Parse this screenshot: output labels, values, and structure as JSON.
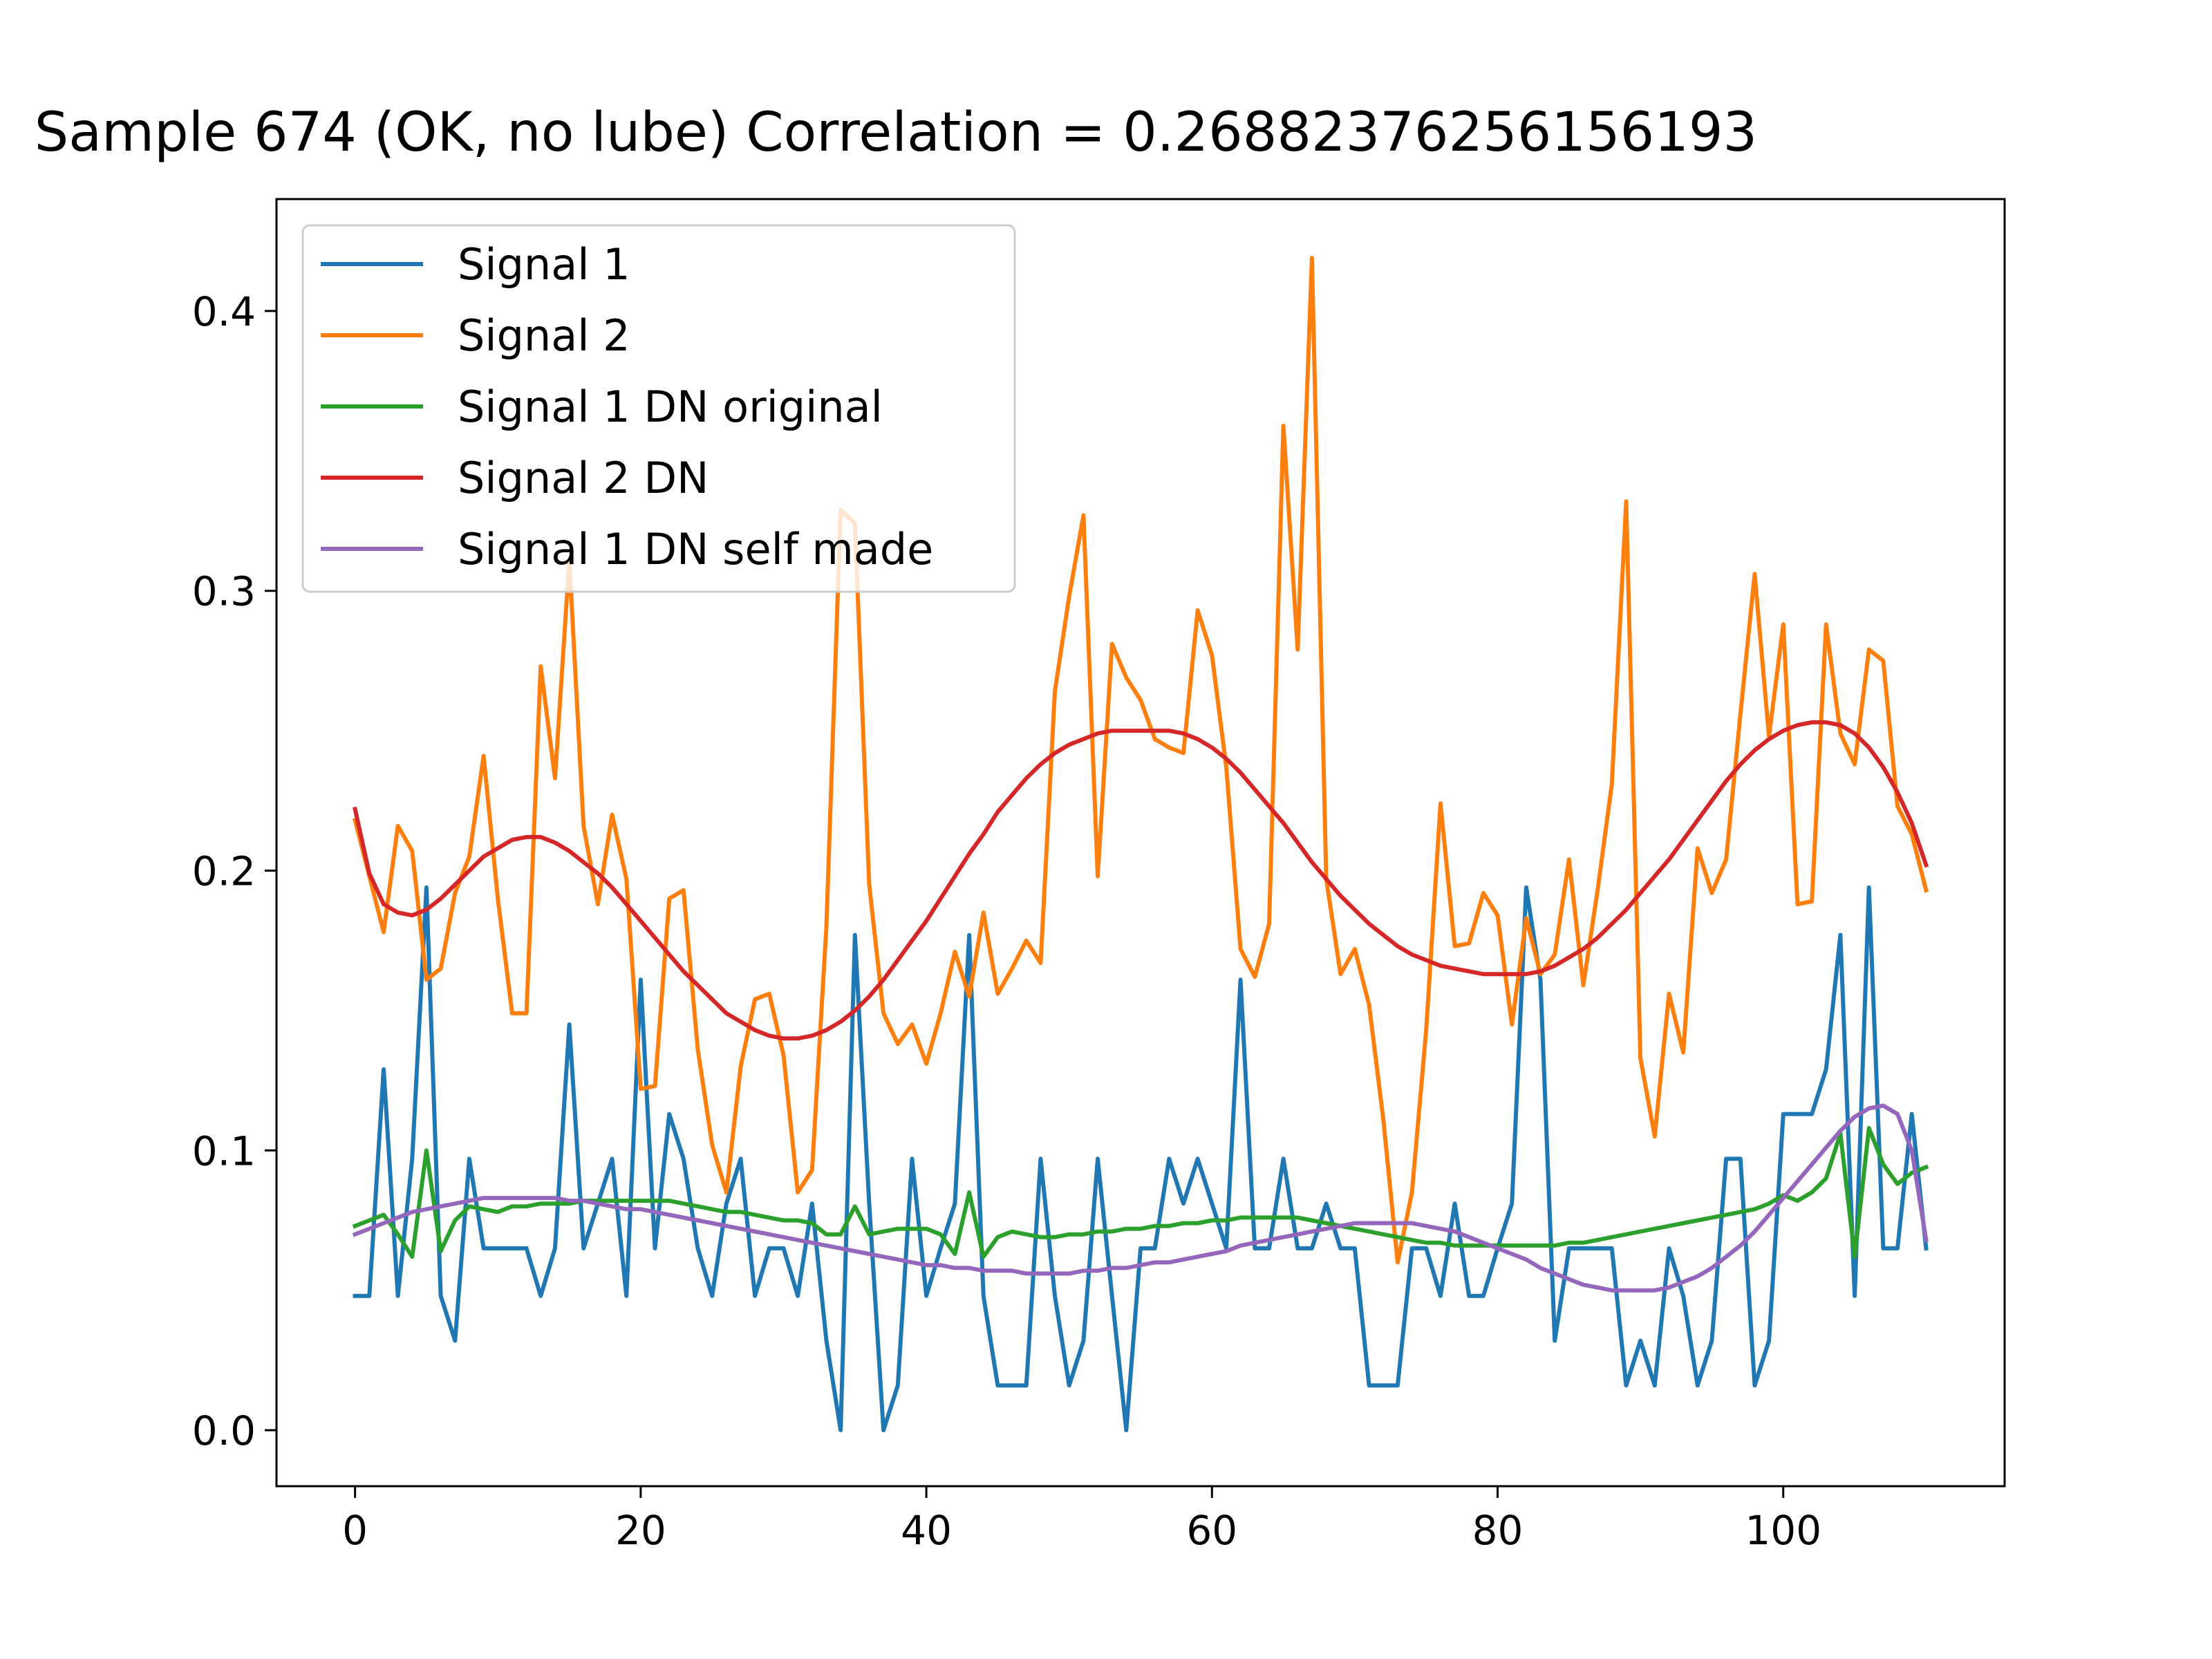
{
  "chart_data": {
    "type": "line",
    "title": "Sample 674 (OK, no lube)  Correlation = 0.26882376256156193",
    "xlabel": "",
    "ylabel": "",
    "xlim": [
      -5.5,
      115.5
    ],
    "ylim": [
      -0.02,
      0.44
    ],
    "xticks": [
      0,
      20,
      40,
      60,
      80,
      100
    ],
    "yticks": [
      0.0,
      0.1,
      0.2,
      0.3,
      0.4
    ],
    "xtick_labels": [
      "0",
      "20",
      "40",
      "60",
      "80",
      "100"
    ],
    "ytick_labels": [
      "0.0",
      "0.1",
      "0.2",
      "0.3",
      "0.4"
    ],
    "grid": false,
    "legend_position": "top-left",
    "series": [
      {
        "name": "Signal 1",
        "color": "#1f77b4",
        "x_start": 0,
        "values": [
          0.048,
          0.048,
          0.129,
          0.048,
          0.097,
          0.194,
          0.048,
          0.032,
          0.097,
          0.065,
          0.065,
          0.065,
          0.065,
          0.048,
          0.065,
          0.145,
          0.065,
          0.081,
          0.097,
          0.048,
          0.161,
          0.065,
          0.113,
          0.097,
          0.065,
          0.048,
          0.081,
          0.097,
          0.048,
          0.065,
          0.065,
          0.048,
          0.081,
          0.032,
          0.0,
          0.177,
          0.081,
          0.0,
          0.016,
          0.097,
          0.048,
          0.065,
          0.081,
          0.177,
          0.048,
          0.016,
          0.016,
          0.016,
          0.097,
          0.048,
          0.016,
          0.032,
          0.097,
          0.048,
          0.0,
          0.065,
          0.065,
          0.097,
          0.081,
          0.097,
          0.081,
          0.065,
          0.161,
          0.065,
          0.065,
          0.097,
          0.065,
          0.065,
          0.081,
          0.065,
          0.065,
          0.016,
          0.016,
          0.016,
          0.065,
          0.065,
          0.048,
          0.081,
          0.048,
          0.048,
          0.065,
          0.081,
          0.194,
          0.161,
          0.032,
          0.065,
          0.065,
          0.065,
          0.065,
          0.016,
          0.032,
          0.016,
          0.065,
          0.048,
          0.016,
          0.032,
          0.097,
          0.097,
          0.016,
          0.032,
          0.113,
          0.113,
          0.113,
          0.129,
          0.177,
          0.048,
          0.194,
          0.065,
          0.065,
          0.113,
          0.065
        ]
      },
      {
        "name": "Signal 2",
        "color": "#ff7f0e",
        "x_start": 0,
        "values": [
          0.218,
          0.198,
          0.178,
          0.216,
          0.207,
          0.161,
          0.165,
          0.192,
          0.205,
          0.241,
          0.19,
          0.149,
          0.149,
          0.273,
          0.233,
          0.311,
          0.216,
          0.188,
          0.22,
          0.197,
          0.122,
          0.123,
          0.19,
          0.193,
          0.136,
          0.102,
          0.085,
          0.13,
          0.154,
          0.156,
          0.134,
          0.085,
          0.093,
          0.18,
          0.329,
          0.324,
          0.195,
          0.149,
          0.138,
          0.145,
          0.131,
          0.149,
          0.171,
          0.155,
          0.185,
          0.156,
          0.165,
          0.175,
          0.167,
          0.264,
          0.298,
          0.327,
          0.198,
          0.281,
          0.269,
          0.261,
          0.247,
          0.244,
          0.242,
          0.293,
          0.277,
          0.237,
          0.172,
          0.162,
          0.181,
          0.359,
          0.279,
          0.419,
          0.197,
          0.163,
          0.172,
          0.152,
          0.111,
          0.06,
          0.085,
          0.143,
          0.224,
          0.173,
          0.174,
          0.192,
          0.184,
          0.145,
          0.183,
          0.163,
          0.17,
          0.204,
          0.159,
          0.193,
          0.231,
          0.332,
          0.133,
          0.105,
          0.156,
          0.135,
          0.208,
          0.192,
          0.204,
          0.256,
          0.306,
          0.248,
          0.288,
          0.188,
          0.189,
          0.288,
          0.249,
          0.238,
          0.279,
          0.275,
          0.223,
          0.213,
          0.193
        ]
      },
      {
        "name": "Signal 1 DN original",
        "color": "#2ca02c",
        "x_start": 0,
        "values": [
          0.073,
          0.075,
          0.077,
          0.07,
          0.062,
          0.1,
          0.064,
          0.075,
          0.08,
          0.079,
          0.078,
          0.08,
          0.08,
          0.081,
          0.081,
          0.081,
          0.082,
          0.082,
          0.082,
          0.082,
          0.082,
          0.082,
          0.082,
          0.081,
          0.08,
          0.079,
          0.078,
          0.078,
          0.077,
          0.076,
          0.075,
          0.075,
          0.074,
          0.07,
          0.07,
          0.08,
          0.07,
          0.071,
          0.072,
          0.072,
          0.072,
          0.07,
          0.063,
          0.085,
          0.062,
          0.069,
          0.071,
          0.07,
          0.069,
          0.069,
          0.07,
          0.07,
          0.071,
          0.071,
          0.072,
          0.072,
          0.073,
          0.073,
          0.074,
          0.074,
          0.075,
          0.075,
          0.076,
          0.076,
          0.076,
          0.076,
          0.076,
          0.075,
          0.074,
          0.073,
          0.072,
          0.071,
          0.07,
          0.069,
          0.068,
          0.067,
          0.067,
          0.066,
          0.066,
          0.066,
          0.066,
          0.066,
          0.066,
          0.066,
          0.066,
          0.067,
          0.067,
          0.068,
          0.069,
          0.07,
          0.071,
          0.072,
          0.073,
          0.074,
          0.075,
          0.076,
          0.077,
          0.078,
          0.079,
          0.081,
          0.084,
          0.082,
          0.085,
          0.09,
          0.106,
          0.062,
          0.108,
          0.095,
          0.088,
          0.092,
          0.094
        ]
      },
      {
        "name": "Signal 2 DN",
        "color": "#d62728",
        "x_start": 0,
        "values": [
          0.222,
          0.199,
          0.188,
          0.185,
          0.184,
          0.186,
          0.19,
          0.195,
          0.2,
          0.205,
          0.208,
          0.211,
          0.212,
          0.212,
          0.21,
          0.207,
          0.203,
          0.199,
          0.194,
          0.188,
          0.182,
          0.176,
          0.17,
          0.164,
          0.159,
          0.154,
          0.149,
          0.146,
          0.143,
          0.141,
          0.14,
          0.14,
          0.141,
          0.143,
          0.146,
          0.15,
          0.155,
          0.161,
          0.168,
          0.175,
          0.182,
          0.19,
          0.198,
          0.206,
          0.213,
          0.221,
          0.227,
          0.233,
          0.238,
          0.242,
          0.245,
          0.247,
          0.249,
          0.25,
          0.25,
          0.25,
          0.25,
          0.25,
          0.249,
          0.247,
          0.244,
          0.24,
          0.235,
          0.229,
          0.223,
          0.217,
          0.21,
          0.203,
          0.197,
          0.191,
          0.186,
          0.181,
          0.177,
          0.173,
          0.17,
          0.168,
          0.166,
          0.165,
          0.164,
          0.163,
          0.163,
          0.163,
          0.163,
          0.164,
          0.166,
          0.169,
          0.172,
          0.176,
          0.181,
          0.186,
          0.192,
          0.198,
          0.204,
          0.211,
          0.218,
          0.225,
          0.232,
          0.238,
          0.243,
          0.247,
          0.25,
          0.252,
          0.253,
          0.253,
          0.252,
          0.249,
          0.244,
          0.237,
          0.228,
          0.217,
          0.202
        ]
      },
      {
        "name": "Signal 1 DN self made",
        "color": "#9467bd",
        "x_start": 0,
        "values": [
          0.07,
          0.072,
          0.074,
          0.076,
          0.078,
          0.079,
          0.08,
          0.081,
          0.082,
          0.083,
          0.083,
          0.083,
          0.083,
          0.083,
          0.083,
          0.082,
          0.082,
          0.081,
          0.08,
          0.079,
          0.079,
          0.078,
          0.077,
          0.076,
          0.075,
          0.074,
          0.073,
          0.072,
          0.071,
          0.07,
          0.069,
          0.068,
          0.067,
          0.066,
          0.065,
          0.064,
          0.063,
          0.062,
          0.061,
          0.06,
          0.059,
          0.059,
          0.058,
          0.058,
          0.057,
          0.057,
          0.057,
          0.056,
          0.056,
          0.056,
          0.056,
          0.057,
          0.057,
          0.058,
          0.058,
          0.059,
          0.06,
          0.06,
          0.061,
          0.062,
          0.063,
          0.064,
          0.066,
          0.067,
          0.068,
          0.069,
          0.07,
          0.071,
          0.072,
          0.073,
          0.074,
          0.074,
          0.074,
          0.074,
          0.074,
          0.073,
          0.072,
          0.071,
          0.069,
          0.067,
          0.065,
          0.063,
          0.061,
          0.058,
          0.056,
          0.054,
          0.052,
          0.051,
          0.05,
          0.05,
          0.05,
          0.05,
          0.051,
          0.053,
          0.055,
          0.058,
          0.062,
          0.066,
          0.071,
          0.077,
          0.083,
          0.089,
          0.095,
          0.101,
          0.107,
          0.112,
          0.115,
          0.116,
          0.113,
          0.1,
          0.068
        ]
      }
    ]
  }
}
